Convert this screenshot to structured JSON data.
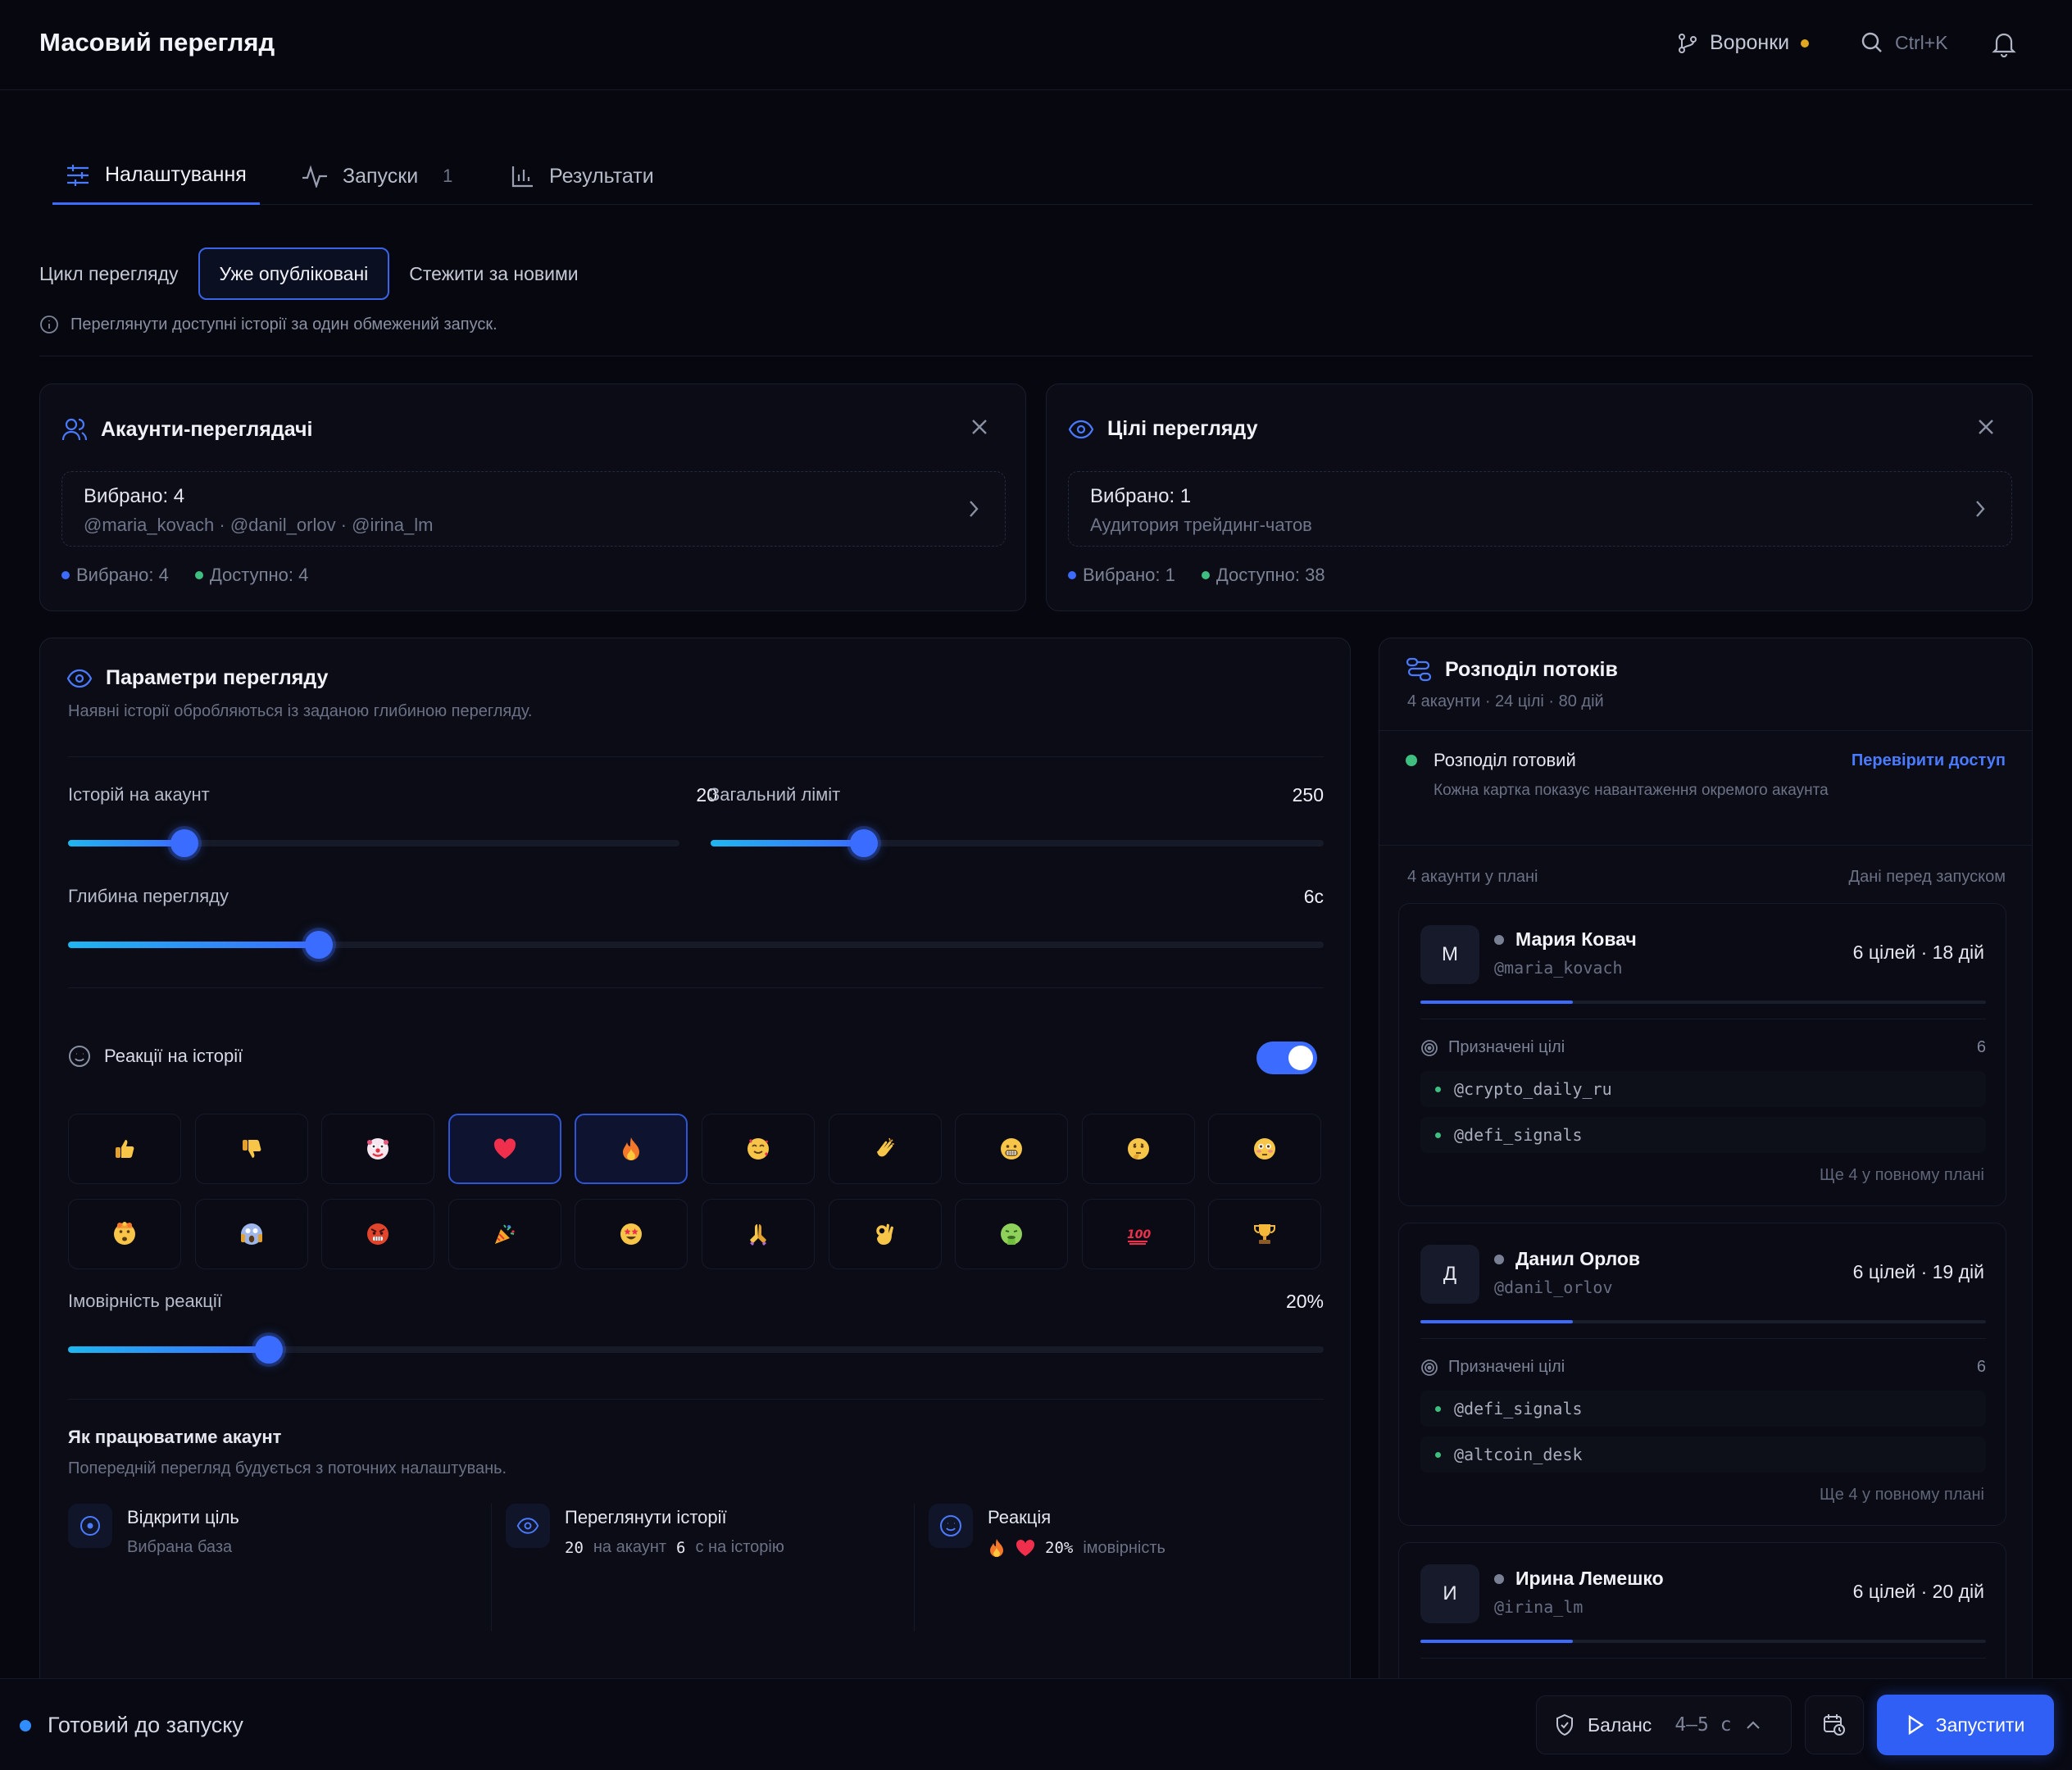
{
  "header": {
    "title": "Масовий перегляд",
    "funnels_label": "Воронки",
    "search_shortcut": "Ctrl+K"
  },
  "tabs": [
    {
      "label": "Налаштування"
    },
    {
      "label": "Запуски",
      "count": "1"
    },
    {
      "label": "Результати"
    }
  ],
  "mode": {
    "label": "Цикл перегляду",
    "options": [
      "Уже опубліковані",
      "Стежити за новими"
    ],
    "selected": "Уже опубліковані",
    "info": "Переглянути доступні історії за один обмежений запуск."
  },
  "viewers_card": {
    "title": "Акаунти-переглядачі",
    "selected_text": "Вибрано: 4",
    "handles_text": "@maria_kovach · @danil_orlov · @irina_lm",
    "stat_selected": "Вибрано: 4",
    "stat_available": "Доступно: 4"
  },
  "targets_card": {
    "title": "Цілі перегляду",
    "selected_text": "Вибрано: 1",
    "subtitle": "Аудитория трейдинг-чатов",
    "stat_selected": "Вибрано: 1",
    "stat_available": "Доступно: 38"
  },
  "params": {
    "title": "Параметри перегляду",
    "subtitle": "Наявні історії обробляються із заданою глибиною перегляду.",
    "stories_per_account": {
      "label": "Історій на акаунт",
      "value": "20",
      "level": 0.19
    },
    "total_limit": {
      "label": "Загальний ліміт",
      "value": "250",
      "level": 0.25
    },
    "depth": {
      "label": "Глибина перегляду",
      "value": "6с",
      "level": 0.2
    },
    "reactions": {
      "label": "Реакції на історії",
      "enabled": true,
      "emojis": [
        "thumbs-up",
        "thumbs-down",
        "clown",
        "heart",
        "fire",
        "smiling-hearts",
        "clap",
        "grin",
        "thinking",
        "flushed",
        "mind-blown",
        "scream",
        "angry",
        "party",
        "star-eyes",
        "pray",
        "ok-hand",
        "vomit",
        "hundred",
        "trophy"
      ],
      "selected": [
        "heart",
        "fire"
      ]
    },
    "probability": {
      "label": "Імовірність реакції",
      "value": "20%",
      "level": 0.16
    },
    "how": {
      "title": "Як працюватиме акаунт",
      "subtitle": "Попередній перегляд будується з поточних налаштувань.",
      "steps": [
        {
          "title": "Відкрити ціль",
          "desc": "Вибрана база"
        },
        {
          "title": "Переглянути історії",
          "num1": "20",
          "txt1": "на акаунт",
          "num2": "6",
          "txt2": "с на історію"
        },
        {
          "title": "Реакція",
          "pct": "20%",
          "txt": "імовірність"
        }
      ]
    }
  },
  "distribution": {
    "title": "Розподіл потоків",
    "subtitle": "4 акаунти · 24 цілі · 80 дій",
    "status_title": "Розподіл готовий",
    "status_desc": "Кожна картка показує навантаження окремого акаунта",
    "check_link": "Перевірити доступ",
    "list_left": "4 акаунти у плані",
    "list_right": "Дані перед запуском",
    "assigned_label": "Призначені цілі",
    "accounts": [
      {
        "initial": "М",
        "name": "Мария Ковач",
        "handle": "@maria_kovach",
        "meta": "6 цілей · 18 дій",
        "assigned": "6",
        "targets": [
          "@crypto_daily_ru",
          "@defi_signals"
        ],
        "more": "Ще 4 у повному плані",
        "load": 0.27
      },
      {
        "initial": "Д",
        "name": "Данил Орлов",
        "handle": "@danil_orlov",
        "meta": "6 цілей · 19 дій",
        "assigned": "6",
        "targets": [
          "@defi_signals",
          "@altcoin_desk"
        ],
        "more": "Ще 4 у повному плані",
        "load": 0.27
      },
      {
        "initial": "И",
        "name": "Ирина Лемешко",
        "handle": "@irina_lm",
        "meta": "6 цілей · 20 дій",
        "load": 0.27
      }
    ]
  },
  "footer": {
    "status": "Готовий до запуску",
    "balance_label": "Баланс",
    "balance_value": "4–5 с",
    "run_label": "Запустити"
  },
  "colors": {
    "accent": "#3b6cff",
    "background": "#07080f",
    "ready": "#3fbf7f"
  }
}
